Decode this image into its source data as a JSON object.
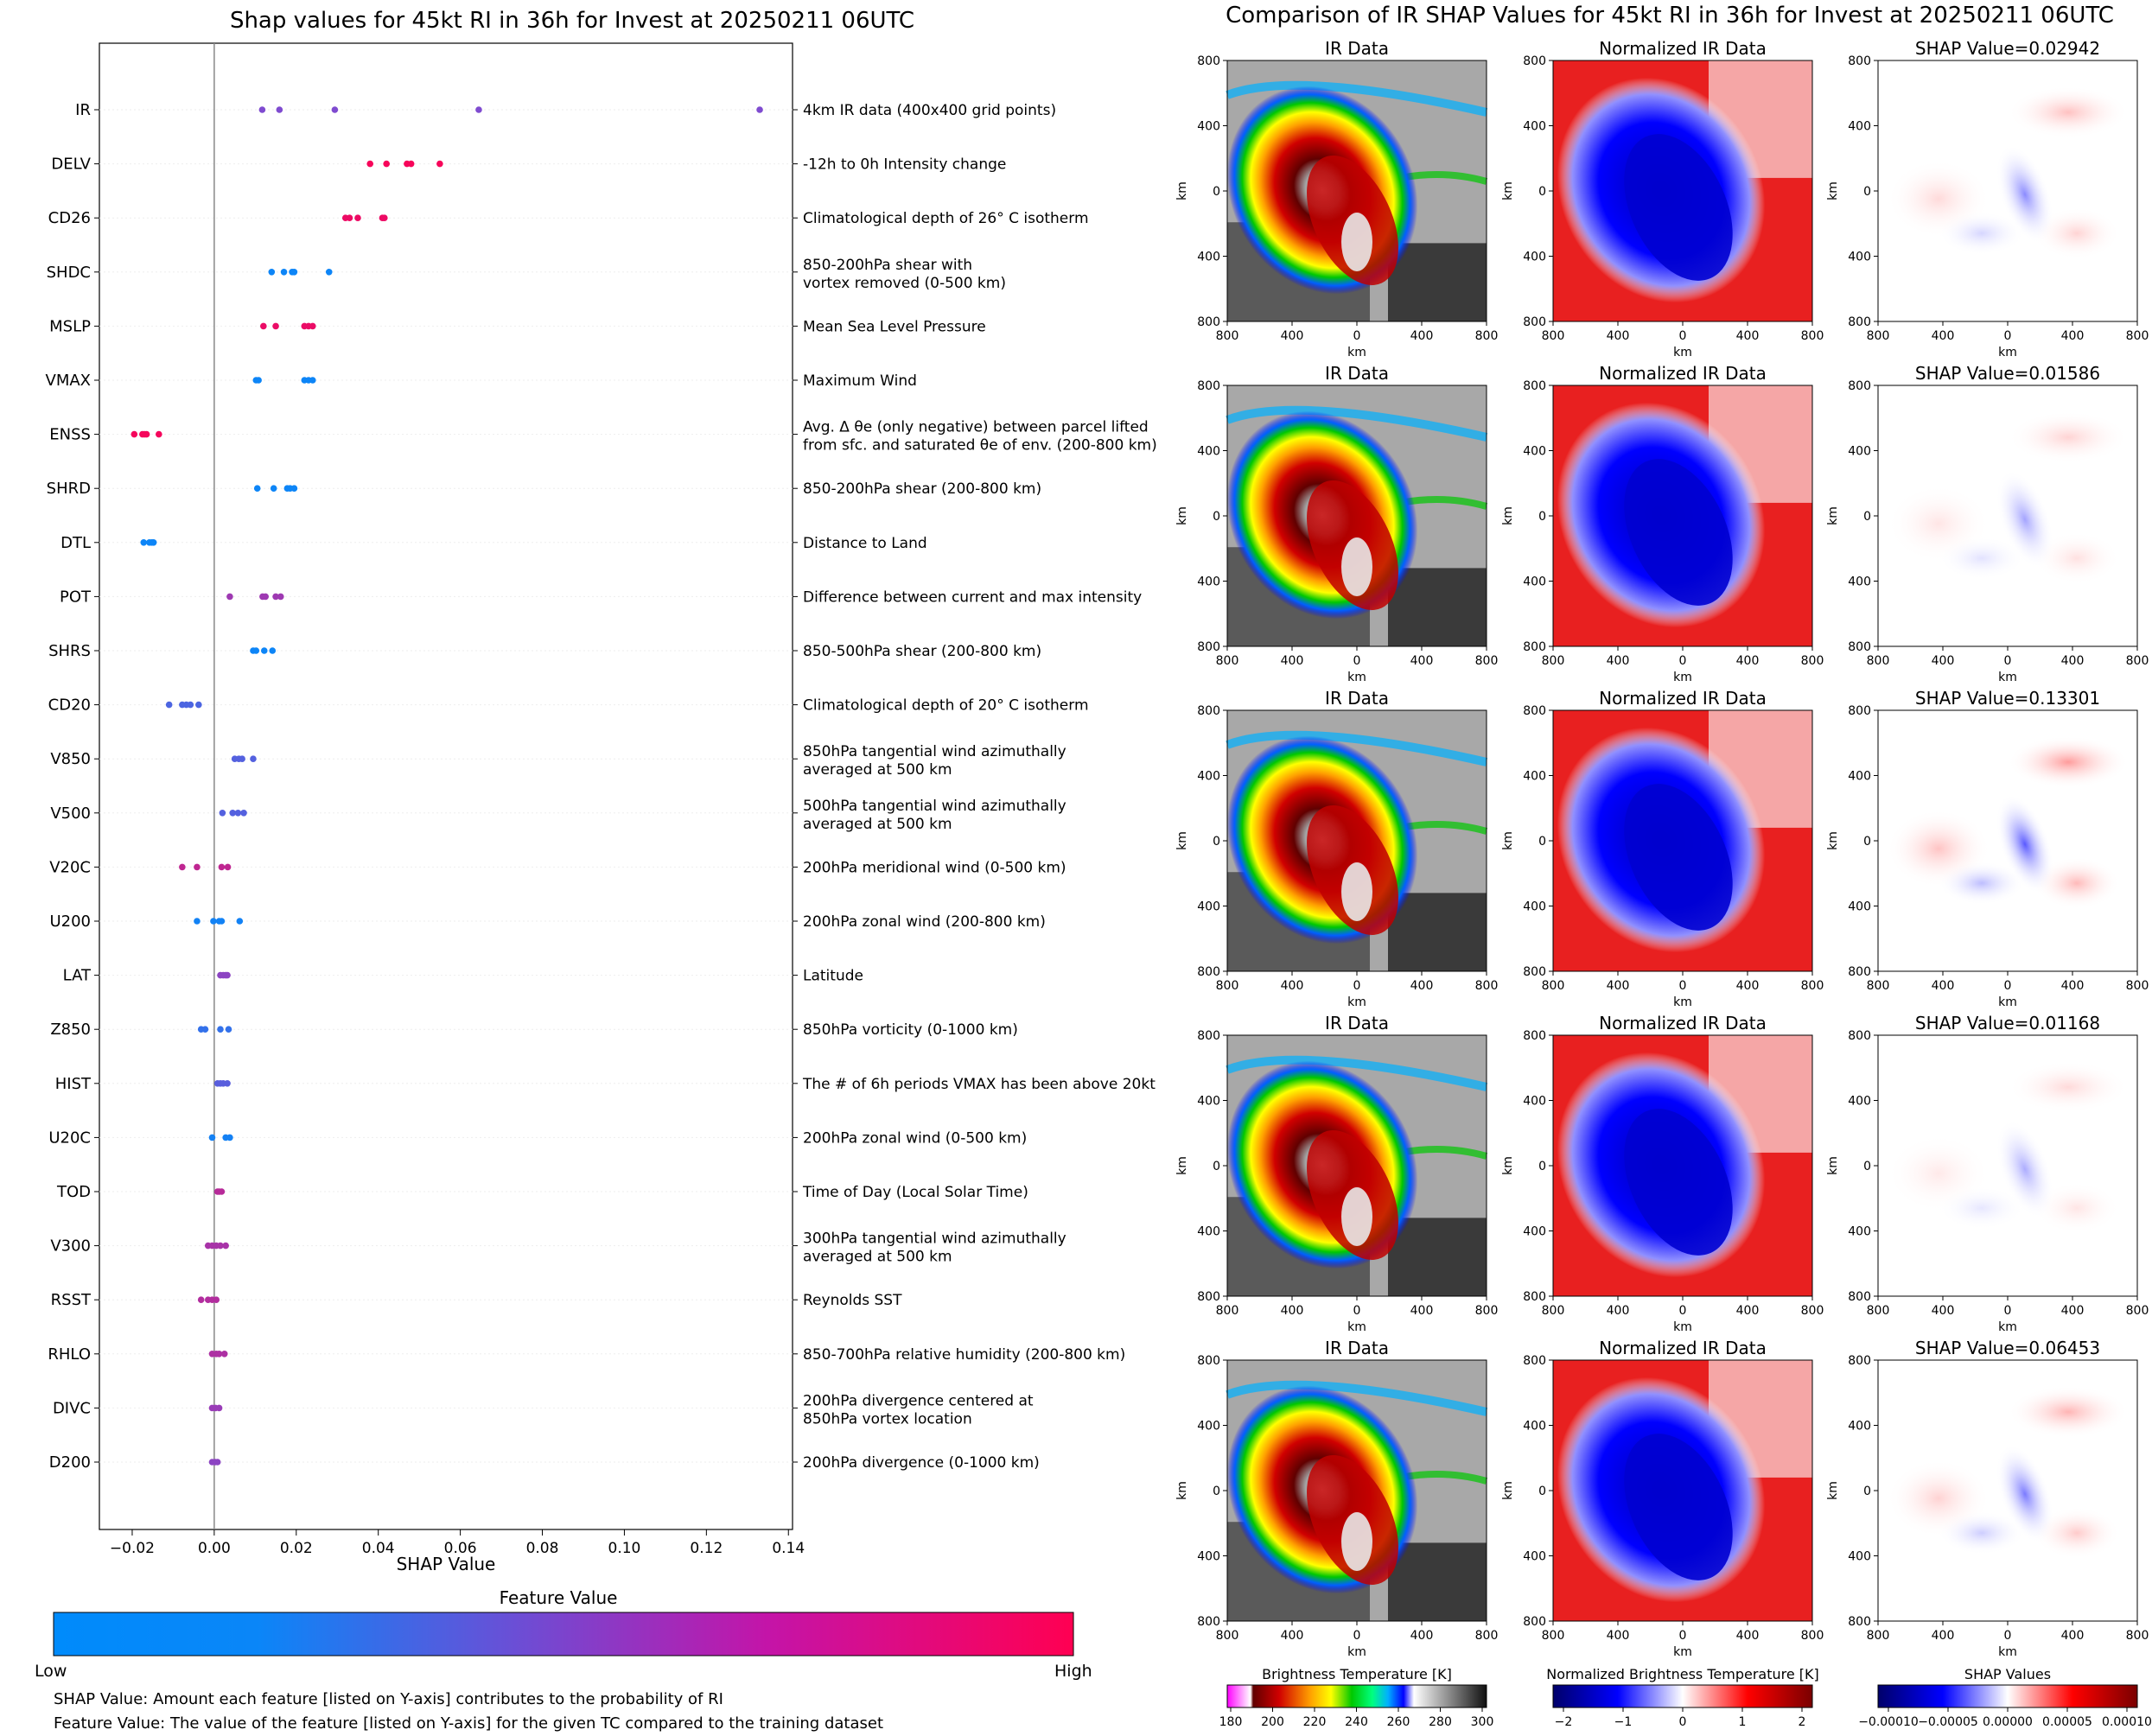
{
  "left_panel": {
    "title": "Shap values for 45kt RI in 36h for Invest at 20250211 06UTC",
    "xlabel": "SHAP Value",
    "colorbar_title": "Feature Value",
    "colorbar_low": "Low",
    "colorbar_high": "High",
    "footnote_1": "SHAP Value: Amount each feature [listed on Y-axis] contributes to the probability of RI",
    "footnote_2": "Feature Value: The value of the feature [listed on Y-axis] for the given TC compared to the training dataset"
  },
  "right_panel": {
    "title": "Comparison of IR SHAP Values for 45kt RI in 36h for Invest at 20250211 06UTC",
    "col_titles": [
      "IR Data",
      "Normalized IR Data"
    ],
    "shap_titles": [
      "SHAP Value=0.02942",
      "SHAP Value=0.01586",
      "SHAP Value=0.13301",
      "SHAP Value=0.01168",
      "SHAP Value=0.06453"
    ],
    "axis_unit": "km",
    "axis_ticks": [
      "800",
      "400",
      "0",
      "400",
      "800"
    ],
    "colorbars": [
      {
        "label": "Brightness Temperature [K]",
        "ticks": [
          "180",
          "200",
          "220",
          "240",
          "260",
          "280",
          "300"
        ]
      },
      {
        "label": "Normalized Brightness Temperature [K]",
        "ticks": [
          "−2",
          "−1",
          "0",
          "1",
          "2"
        ]
      },
      {
        "label": "SHAP Values",
        "ticks": [
          "−0.00010",
          "−0.00005",
          "0.00000",
          "0.00005",
          "0.00010"
        ]
      }
    ]
  },
  "chart_data": [
    {
      "type": "scatter",
      "title": "Shap values for 45kt RI in 36h for Invest at 20250211 06UTC",
      "xlabel": "SHAP Value",
      "xlim": [
        -0.028,
        0.141
      ],
      "xticks": [
        "−0.02",
        "0.00",
        "0.02",
        "0.04",
        "0.06",
        "0.08",
        "0.10",
        "0.12",
        "0.14"
      ],
      "xtick_values": [
        -0.02,
        0,
        0.02,
        0.04,
        0.06,
        0.08,
        0.1,
        0.12,
        0.14
      ],
      "colors": {
        "low": "#008bfb",
        "mid": "#7f4bd0",
        "high": "#ff0052"
      },
      "features": [
        {
          "name": "IR",
          "desc": [
            "4km IR data (400x400 grid points)"
          ],
          "fv": 0.5,
          "shap": [
            0.0117,
            0.0159,
            0.0294,
            0.0645,
            0.133
          ]
        },
        {
          "name": "DELV",
          "desc": [
            "-12h to 0h Intensity change"
          ],
          "fv": 0.97,
          "shap": [
            0.038,
            0.042,
            0.047,
            0.048,
            0.055
          ]
        },
        {
          "name": "CD26",
          "desc": [
            "Climatological depth of 26° C isotherm"
          ],
          "fv": 0.93,
          "shap": [
            0.032,
            0.033,
            0.035,
            0.041,
            0.0415
          ]
        },
        {
          "name": "SHDC",
          "desc": [
            "850-200hPa shear with",
            "vortex removed (0-500 km)"
          ],
          "fv": 0.05,
          "shap": [
            0.014,
            0.017,
            0.019,
            0.0195,
            0.028
          ]
        },
        {
          "name": "MSLP",
          "desc": [
            "Mean Sea Level Pressure"
          ],
          "fv": 0.92,
          "shap": [
            0.012,
            0.015,
            0.022,
            0.023,
            0.024
          ]
        },
        {
          "name": "VMAX",
          "desc": [
            "Maximum Wind"
          ],
          "fv": 0.05,
          "shap": [
            0.0102,
            0.0108,
            0.022,
            0.023,
            0.024
          ]
        },
        {
          "name": "ENSS",
          "desc": [
            "Avg. Δ θe (only negative) between parcel lifted",
            "from sfc. and saturated θe of env. (200-800 km)"
          ],
          "fv": 0.96,
          "shap": [
            -0.0195,
            -0.0175,
            -0.017,
            -0.0165,
            -0.0135
          ]
        },
        {
          "name": "SHRD",
          "desc": [
            "850-200hPa shear (200-800 km)"
          ],
          "fv": 0.05,
          "shap": [
            0.0105,
            0.0145,
            0.0178,
            0.0185,
            0.0195
          ]
        },
        {
          "name": "DTL",
          "desc": [
            "Distance to Land"
          ],
          "fv": 0.05,
          "shap": [
            -0.0172,
            -0.0158,
            -0.0152,
            -0.0148
          ]
        },
        {
          "name": "POT",
          "desc": [
            "Difference between current and max intensity"
          ],
          "fv": 0.62,
          "shap": [
            0.0038,
            0.0118,
            0.0125,
            0.015,
            0.0162
          ]
        },
        {
          "name": "SHRS",
          "desc": [
            "850-500hPa shear (200-800 km)"
          ],
          "fv": 0.05,
          "shap": [
            0.0095,
            0.0102,
            0.0122,
            0.0142
          ]
        },
        {
          "name": "CD20",
          "desc": [
            "Climatological depth of 20° C isotherm"
          ],
          "fv": 0.3,
          "shap": [
            -0.011,
            -0.0078,
            -0.0068,
            -0.0058,
            -0.0038
          ]
        },
        {
          "name": "V850",
          "desc": [
            "850hPa tangential wind azimuthally",
            "averaged at 500 km"
          ],
          "fv": 0.33,
          "shap": [
            0.005,
            0.006,
            0.0068,
            0.0095
          ]
        },
        {
          "name": "V500",
          "desc": [
            "500hPa tangential wind azimuthally",
            "averaged at 500 km"
          ],
          "fv": 0.33,
          "shap": [
            0.002,
            0.0045,
            0.0058,
            0.0072
          ]
        },
        {
          "name": "V20C",
          "desc": [
            "200hPa meridional wind (0-500 km)"
          ],
          "fv": 0.75,
          "shap": [
            -0.0078,
            -0.0042,
            0.0018,
            0.0033
          ]
        },
        {
          "name": "U200",
          "desc": [
            "200hPa zonal wind (200-800 km)"
          ],
          "fv": 0.07,
          "shap": [
            -0.0042,
            -0.0002,
            0.0012,
            0.0018,
            0.0062
          ]
        },
        {
          "name": "LAT",
          "desc": [
            "Latitude"
          ],
          "fv": 0.55,
          "shap": [
            0.0015,
            0.0022,
            0.0028,
            0.0032
          ]
        },
        {
          "name": "Z850",
          "desc": [
            "850hPa vorticity (0-1000 km)"
          ],
          "fv": 0.2,
          "shap": [
            -0.0032,
            -0.0022,
            0.0015,
            0.0035
          ]
        },
        {
          "name": "HIST",
          "desc": [
            "The # of 6h periods VMAX has been above 20kt"
          ],
          "fv": 0.35,
          "shap": [
            0.0008,
            0.0015,
            0.0022,
            0.0032
          ]
        },
        {
          "name": "U20C",
          "desc": [
            "200hPa zonal wind (0-500 km)"
          ],
          "fv": 0.08,
          "shap": [
            -0.0005,
            0.0028,
            0.0038
          ]
        },
        {
          "name": "TOD",
          "desc": [
            "Time of Day (Local Solar Time)"
          ],
          "fv": 0.72,
          "shap": [
            0.0008,
            0.0012,
            0.0018
          ]
        },
        {
          "name": "V300",
          "desc": [
            "300hPa tangential wind azimuthally",
            "averaged at 500 km"
          ],
          "fv": 0.66,
          "shap": [
            -0.0015,
            -0.0005,
            0.0005,
            0.0015,
            0.0028
          ]
        },
        {
          "name": "RSST",
          "desc": [
            "Reynolds SST"
          ],
          "fv": 0.7,
          "shap": [
            -0.0032,
            -0.0015,
            -0.0005,
            0.0005
          ]
        },
        {
          "name": "RHLO",
          "desc": [
            "850-700hPa relative humidity (200-800 km)"
          ],
          "fv": 0.68,
          "shap": [
            -0.0005,
            0.0005,
            0.0012,
            0.0025
          ]
        },
        {
          "name": "DIVC",
          "desc": [
            "200hPa divergence centered at",
            "850hPa vortex location"
          ],
          "fv": 0.6,
          "shap": [
            -0.0005,
            0.0003,
            0.0012
          ]
        },
        {
          "name": "D200",
          "desc": [
            "200hPa divergence (0-1000 km)"
          ],
          "fv": 0.55,
          "shap": [
            -0.0005,
            0.0002,
            0.0008
          ]
        }
      ]
    }
  ]
}
